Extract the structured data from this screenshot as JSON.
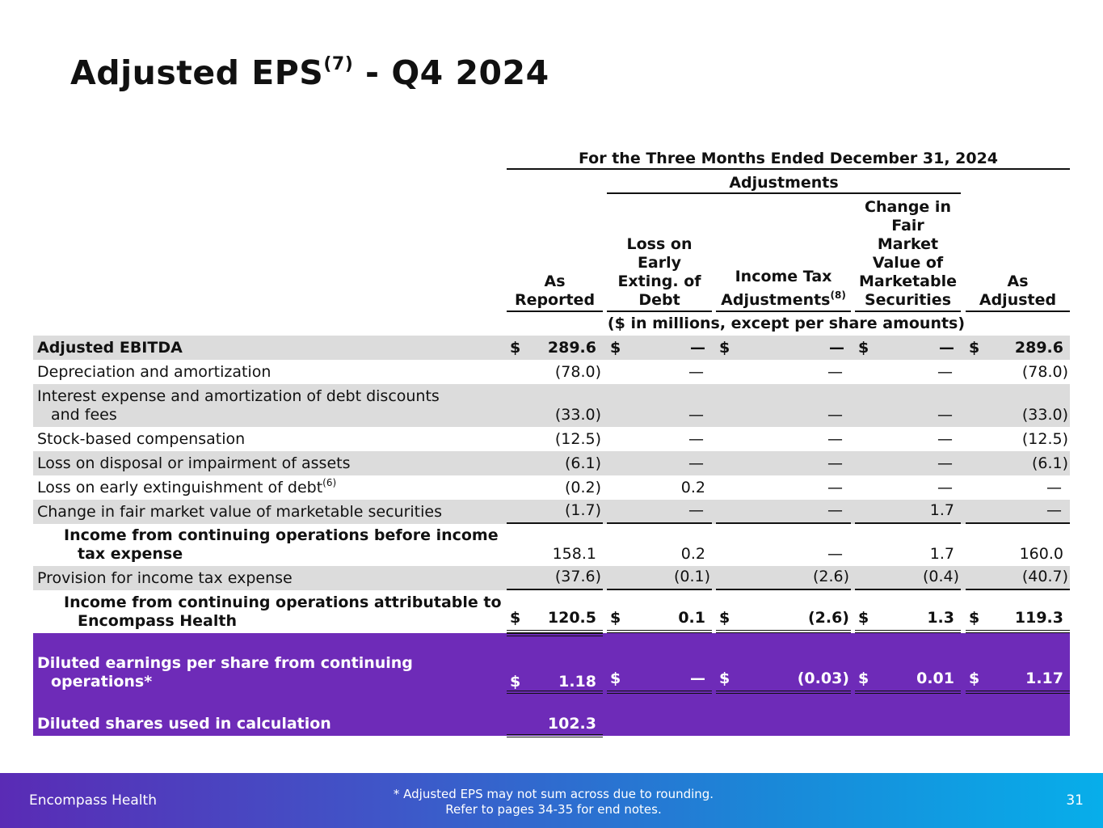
{
  "title": {
    "main": "Adjusted EPS",
    "sup": "(7)",
    "suffix": " - Q4 2024"
  },
  "header": {
    "period": "For the Three Months Ended December 31, 2024",
    "adjustments": "Adjustments",
    "units": "($ in millions, except per share amounts)",
    "columns": {
      "as_reported": [
        "As",
        "Reported"
      ],
      "loss_debt": [
        "Loss on",
        "Early",
        "Exting. of",
        "Debt"
      ],
      "income_tax": [
        "Income Tax",
        "Adjustments",
        "(8)"
      ],
      "fair_value": [
        "Change in",
        "Fair",
        "Market",
        "Value of",
        "Marketable",
        "Securities"
      ],
      "as_adjusted": [
        "As",
        "Adjusted"
      ]
    }
  },
  "dollar": "$",
  "dash": "—",
  "rows": {
    "ebitda": {
      "label": "Adjusted EBITDA",
      "as_reported": "289.6",
      "loss_debt": "—",
      "income_tax": "—",
      "fair_value": "—",
      "as_adjusted": "289.6"
    },
    "depreciation": {
      "label": "Depreciation and amortization",
      "as_reported": "(78.0)",
      "as_adjusted": "(78.0)"
    },
    "interest": {
      "label_1": "Interest expense and amortization of debt discounts",
      "label_2": "and fees",
      "as_reported": "(33.0)",
      "as_adjusted": "(33.0)"
    },
    "stock": {
      "label": "Stock-based compensation",
      "as_reported": "(12.5)",
      "as_adjusted": "(12.5)"
    },
    "disposal": {
      "label": "Loss on disposal or impairment of assets",
      "as_reported": "(6.1)",
      "as_adjusted": "(6.1)"
    },
    "early_ext": {
      "label": "Loss on early extinguishment of debt",
      "sup": "(6)",
      "as_reported": "(0.2)",
      "loss_debt": "0.2"
    },
    "fair_market": {
      "label": "Change in fair market value of marketable securities",
      "as_reported": "(1.7)",
      "fair_value": "1.7"
    },
    "pretax": {
      "label_1": "Income from continuing operations before income",
      "label_2": "tax expense",
      "as_reported": "158.1",
      "loss_debt": "0.2",
      "fair_value": "1.7",
      "as_adjusted": "160.0"
    },
    "provision": {
      "label": "Provision for income tax expense",
      "as_reported": "(37.6)",
      "loss_debt": "(0.1)",
      "income_tax": "(2.6)",
      "fair_value": "(0.4)",
      "as_adjusted": "(40.7)"
    },
    "attributable": {
      "label_1": "Income from continuing operations attributable to",
      "label_2": "Encompass Health",
      "as_reported": "120.5",
      "loss_debt": "0.1",
      "income_tax": "(2.6)",
      "fair_value": "1.3",
      "as_adjusted": "119.3"
    },
    "diluted_eps": {
      "label_1": "Diluted earnings per share from continuing",
      "label_2": "operations*",
      "as_reported": "1.18",
      "loss_debt": "—",
      "income_tax": "(0.03)",
      "fair_value": "0.01",
      "as_adjusted": "1.17"
    },
    "diluted_shares": {
      "label": "Diluted shares used in calculation",
      "as_reported": "102.3"
    }
  },
  "footer": {
    "brand": "Encompass Health",
    "note_1": "*  Adjusted EPS may not sum across due to rounding.",
    "note_2": "Refer to pages 34-35 for end notes.",
    "page": "31"
  }
}
